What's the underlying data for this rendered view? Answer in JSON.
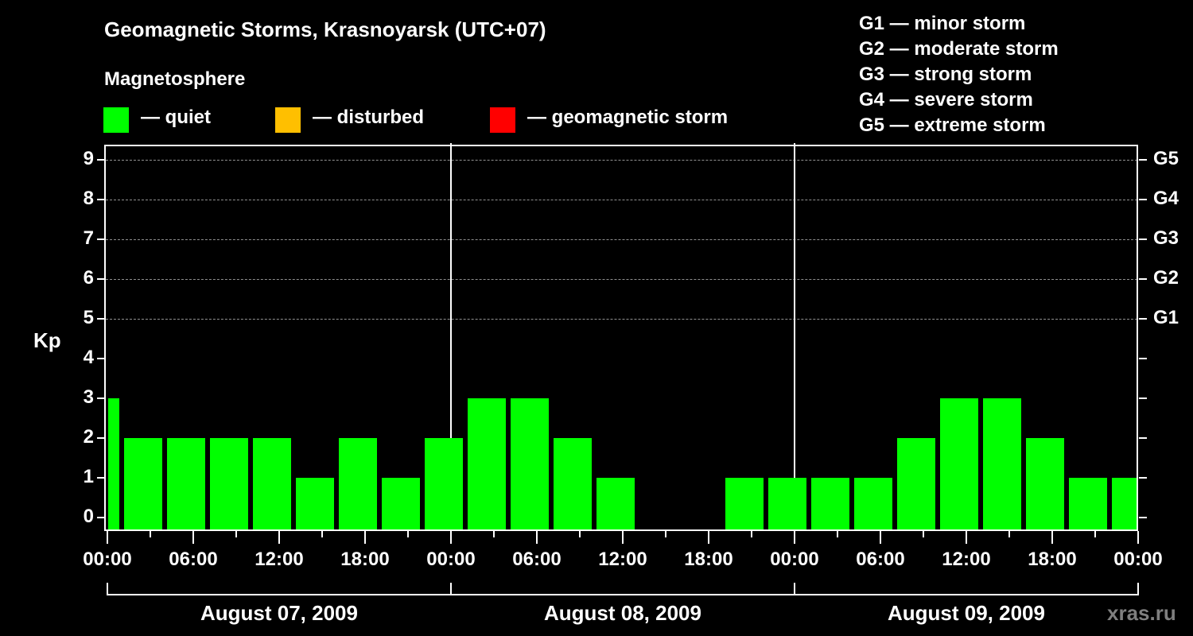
{
  "header": {
    "title": "Geomagnetic Storms, Krasnoyarsk (UTC+07)",
    "subtitle": "Magnetosphere"
  },
  "legend": [
    {
      "label": "— quiet",
      "color": "#00ff00"
    },
    {
      "label": "— disturbed",
      "color": "#ffbf00"
    },
    {
      "label": "— geomagnetic storm",
      "color": "#ff0000"
    }
  ],
  "storm_levels": [
    "G1 — minor storm",
    "G2 — moderate storm",
    "G3 — strong storm",
    "G4 — severe storm",
    "G5 — extreme storm"
  ],
  "axes": {
    "ylabel": "Kp",
    "yticks": [
      "0",
      "1",
      "2",
      "3",
      "4",
      "5",
      "6",
      "7",
      "8",
      "9"
    ],
    "right_ticks": [
      "G1",
      "G2",
      "G3",
      "G4",
      "G5"
    ],
    "xticks": [
      "00:00",
      "06:00",
      "12:00",
      "18:00",
      "00:00",
      "06:00",
      "12:00",
      "18:00",
      "00:00",
      "06:00",
      "12:00",
      "18:00",
      "00:00"
    ],
    "dates": [
      "August 07, 2009",
      "August 08, 2009",
      "August 09, 2009"
    ]
  },
  "watermark": "xras.ru",
  "chart_data": {
    "type": "bar",
    "title": "Geomagnetic Storms, Krasnoyarsk (UTC+07)",
    "xlabel": "",
    "ylabel": "Kp",
    "ylim": [
      0,
      9
    ],
    "grid": "dashed horizontal at Kp 5-9",
    "legend_position": "top",
    "categories": [
      "Aug 07 00:00",
      "Aug 07 01:00",
      "Aug 07 04:00",
      "Aug 07 07:00",
      "Aug 07 10:00",
      "Aug 07 13:00",
      "Aug 07 16:00",
      "Aug 07 19:00",
      "Aug 07 22:00",
      "Aug 08 01:00",
      "Aug 08 04:00",
      "Aug 08 07:00",
      "Aug 08 10:00",
      "Aug 08 13:00",
      "Aug 08 16:00",
      "Aug 08 19:00",
      "Aug 08 22:00",
      "Aug 09 01:00",
      "Aug 09 04:00",
      "Aug 09 07:00",
      "Aug 09 10:00",
      "Aug 09 13:00",
      "Aug 09 16:00",
      "Aug 09 19:00",
      "Aug 09 22:00"
    ],
    "values": [
      3,
      2,
      2,
      2,
      2,
      1,
      2,
      1,
      2,
      3,
      3,
      2,
      1,
      null,
      null,
      1,
      1,
      1,
      1,
      2,
      3,
      3,
      2,
      1,
      1
    ],
    "bar_color": "#00ff00",
    "secondary_axis": {
      "G1": 5,
      "G2": 6,
      "G3": 7,
      "G4": 8,
      "G5": 9
    }
  }
}
